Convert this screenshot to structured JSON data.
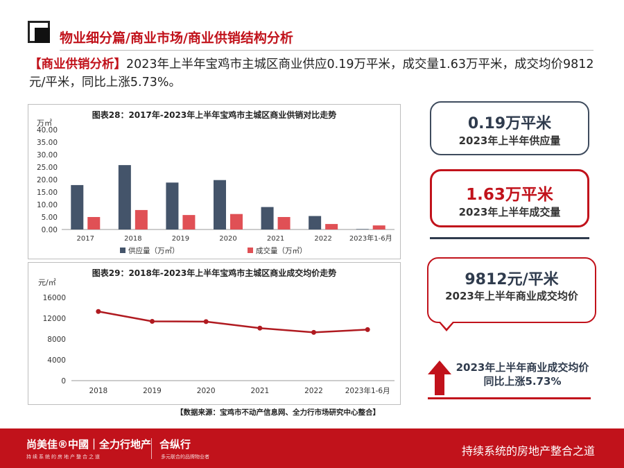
{
  "header": {
    "title": "物业细分篇/商业市场/商业供销结构分析",
    "intro_tag": "【商业供销分析】",
    "intro_text": "2023年上半年宝鸡市主城区商业供应0.19万平米，成交量1.63万平米，成交均价9812元/平米，同比上涨5.73%。"
  },
  "chart_data": [
    {
      "type": "bar",
      "title": "图表28：2017年-2023年上半年宝鸡市主城区商业供销对比走势",
      "ylabel": "万㎡",
      "ylim": [
        0,
        40
      ],
      "yticks": [
        "0.00",
        "5.00",
        "10.00",
        "15.00",
        "20.00",
        "25.00",
        "30.00",
        "35.00",
        "40.00"
      ],
      "categories": [
        "2017",
        "2018",
        "2019",
        "2020",
        "2021",
        "2022",
        "2023年1-6月"
      ],
      "series": [
        {
          "name": "供应量（万㎡）",
          "color": "#44546a",
          "values": [
            17.8,
            25.8,
            18.8,
            19.8,
            9.0,
            5.4,
            0.19
          ]
        },
        {
          "name": "成交量（万㎡）",
          "color": "#e05055",
          "values": [
            5.0,
            7.8,
            5.8,
            6.2,
            5.0,
            2.2,
            1.63
          ]
        }
      ],
      "legend": "bottom"
    },
    {
      "type": "line",
      "title": "图表29：2018年-2023年上半年宝鸡市主城区商业成交均价走势",
      "ylabel": "元/㎡",
      "ylim": [
        0,
        16000
      ],
      "yticks": [
        "0",
        "4000",
        "8000",
        "12000",
        "16000"
      ],
      "categories": [
        "2018",
        "2019",
        "2020",
        "2021",
        "2022",
        "2023年1-6月"
      ],
      "series": [
        {
          "name": "",
          "color": "#b01a20",
          "values": [
            13300,
            11400,
            11350,
            10100,
            9280,
            9812
          ]
        }
      ]
    }
  ],
  "cards": {
    "supply_value": "0.19万平米",
    "supply_label": "2023年上半年供应量",
    "deal_value": "1.63万平米",
    "deal_label": "2023年上半年成交量",
    "price_value": "9812元/平米",
    "price_label": "2023年上半年商业成交均价",
    "growth_label": "2023年上半年商业成交均价同比上涨5.73%"
  },
  "source": "【数据来源：宝鸡市不动产信息网、全力行市场研究中心整合】",
  "footer": {
    "brand": "尚美佳®中國｜全力行地产",
    "brand_sub": "持续系统的房地产整合之道",
    "brand2": "合纵行",
    "brand2_sub": "多元联合的品牌物业者",
    "slogan": "持续系统的房地产整合之道"
  },
  "colors": {
    "accent": "#c1121b",
    "navy": "#2f3b4d"
  }
}
